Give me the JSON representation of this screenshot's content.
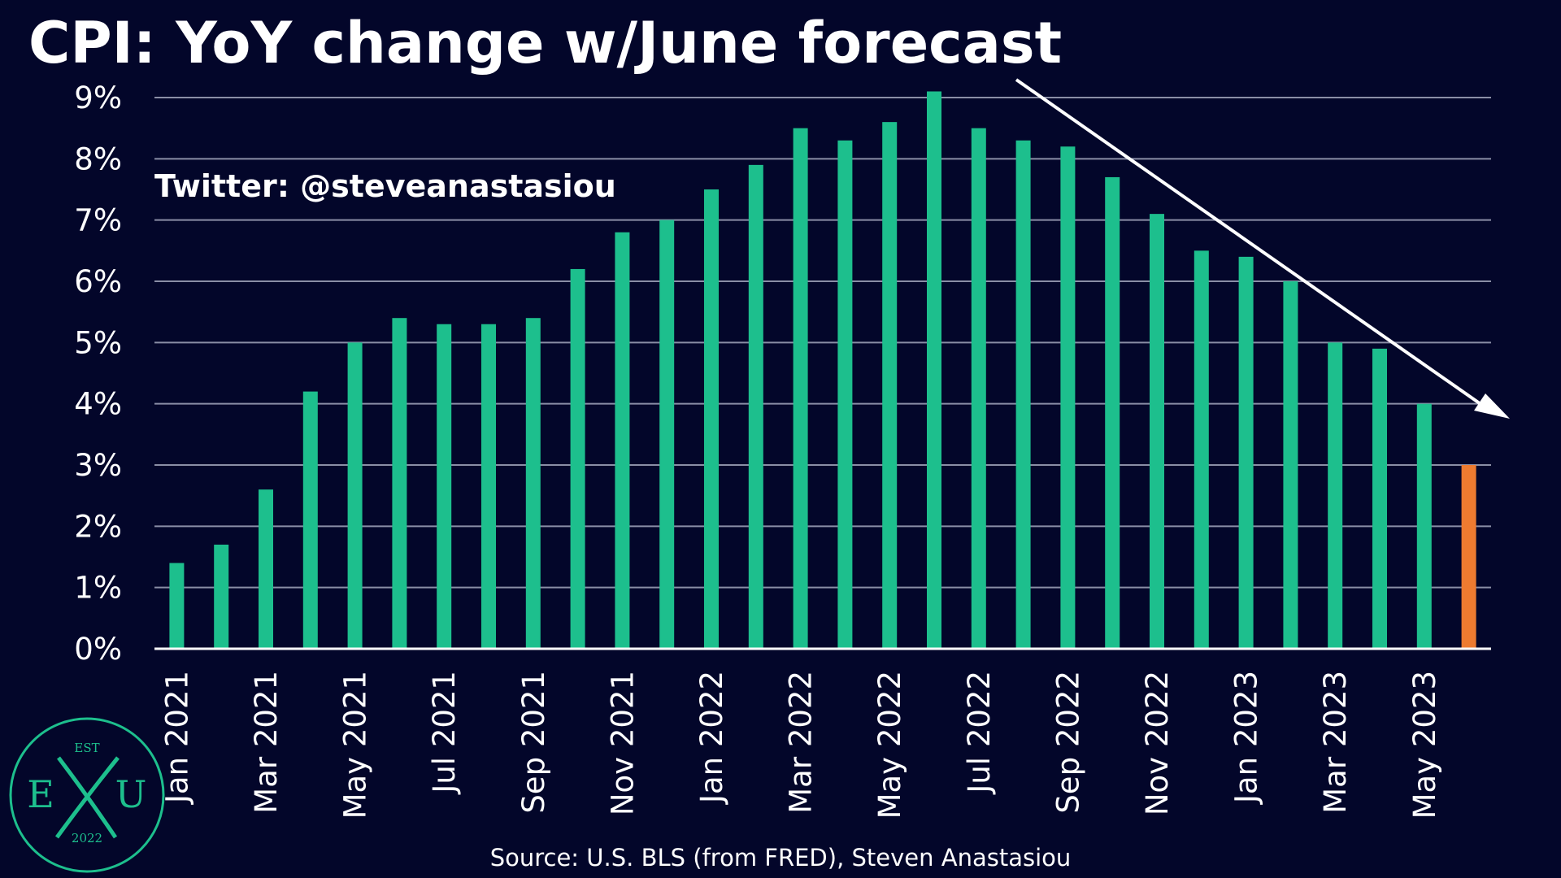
{
  "colors": {
    "background": "#03062a",
    "bar_actual": "#1dbf8d",
    "bar_forecast": "#ee7b30",
    "gridline": "#8a8ea6",
    "text": "#ffffff",
    "trend_arrow": "#ffffff"
  },
  "header": {
    "title": "CPI: YoY change w/June forecast",
    "handle": "Twitter: @steveanastasiou"
  },
  "footer": {
    "source": "Source: U.S. BLS (from FRED), Steven Anastasiou"
  },
  "logo": {
    "est": "EST",
    "left_letter": "E",
    "right_letter": "U",
    "center_mark": "X",
    "year": "2022"
  },
  "chart_data": {
    "type": "bar",
    "title": "CPI: YoY change w/June forecast",
    "xlabel": "",
    "ylabel": "",
    "ylim": [
      0,
      9
    ],
    "y_ticks": [
      0,
      1,
      2,
      3,
      4,
      5,
      6,
      7,
      8,
      9
    ],
    "y_tick_labels": [
      "0%",
      "1%",
      "2%",
      "3%",
      "4%",
      "5%",
      "6%",
      "7%",
      "8%",
      "9%"
    ],
    "grid": "horizontal",
    "categories": [
      "Jan 2021",
      "Feb 2021",
      "Mar 2021",
      "Apr 2021",
      "May 2021",
      "Jun 2021",
      "Jul 2021",
      "Aug 2021",
      "Sep 2021",
      "Oct 2021",
      "Nov 2021",
      "Dec 2021",
      "Jan 2022",
      "Feb 2022",
      "Mar 2022",
      "Apr 2022",
      "May 2022",
      "Jun 2022",
      "Jul 2022",
      "Aug 2022",
      "Sep 2022",
      "Oct 2022",
      "Nov 2022",
      "Dec 2022",
      "Jan 2023",
      "Feb 2023",
      "Mar 2023",
      "Apr 2023",
      "May 2023",
      "Jun 2023"
    ],
    "x_tick_labels": [
      "Jan 2021",
      "Mar 2021",
      "May 2021",
      "Jul 2021",
      "Sep 2021",
      "Nov 2021",
      "Jan 2022",
      "Mar 2022",
      "May 2022",
      "Jul 2022",
      "Sep 2022",
      "Nov 2022",
      "Jan 2023",
      "Mar 2023",
      "May 2023"
    ],
    "values": [
      1.4,
      1.7,
      2.6,
      4.2,
      5.0,
      5.4,
      5.3,
      5.3,
      5.4,
      6.2,
      6.8,
      7.0,
      7.5,
      7.9,
      8.5,
      8.3,
      8.6,
      9.1,
      8.5,
      8.3,
      8.2,
      7.7,
      7.1,
      6.5,
      6.4,
      6.0,
      5.0,
      4.9,
      4.0,
      3.0
    ],
    "series_status": [
      "actual",
      "actual",
      "actual",
      "actual",
      "actual",
      "actual",
      "actual",
      "actual",
      "actual",
      "actual",
      "actual",
      "actual",
      "actual",
      "actual",
      "actual",
      "actual",
      "actual",
      "actual",
      "actual",
      "actual",
      "actual",
      "actual",
      "actual",
      "actual",
      "actual",
      "actual",
      "actual",
      "actual",
      "actual",
      "forecast"
    ],
    "annotations": [
      {
        "type": "trend-arrow",
        "direction": "down",
        "from_category": "Jul 2022",
        "to_category": "Jun 2023"
      }
    ]
  }
}
